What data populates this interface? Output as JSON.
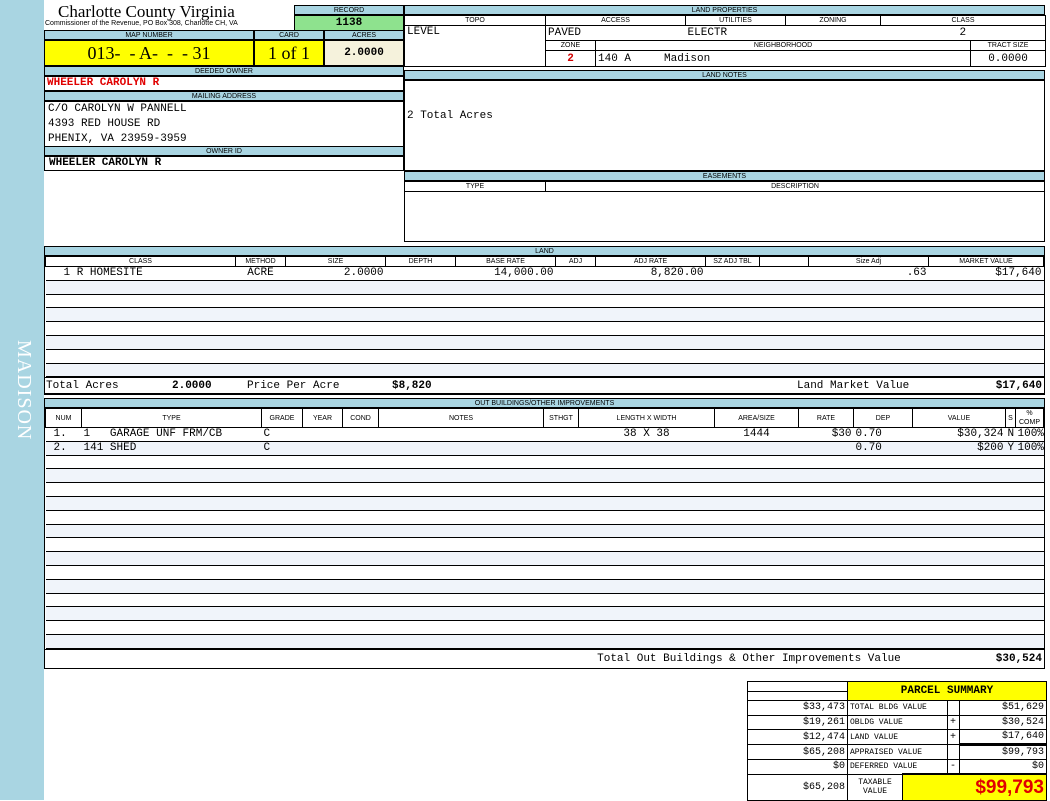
{
  "sidebar": {
    "label": "MADISON",
    "color": "#a9d5e2"
  },
  "header": {
    "county": "Charlotte County Virginia",
    "subtitle": "Commissioner of the Revenue, PO Box 308, Charlotte CH, VA",
    "record_label": "RECORD",
    "record": "1138"
  },
  "parcel": {
    "map_label": "MAP NUMBER",
    "map_number": "013-  - A-  -  - 31",
    "card_label": "CARD",
    "card": "1 of 1",
    "acres_label": "ACRES",
    "acres": "2.0000"
  },
  "owner": {
    "deeded_label": "DEEDED OWNER",
    "deeded": "WHEELER CAROLYN R",
    "mailing_label": "MAILING ADDRESS",
    "address": [
      "C/O CAROLYN W PANNELL",
      "4393 RED HOUSE RD",
      "PHENIX, VA 23959-3959"
    ],
    "id_label": "OWNER ID",
    "id": "WHEELER CAROLYN R"
  },
  "land_props": {
    "title": "LAND PROPERTIES",
    "headers": [
      "TOPO",
      "ACCESS",
      "UTILITIES",
      "ZONING",
      "CLASS"
    ],
    "topo": "LEVEL",
    "access": "PAVED",
    "utilities": "ELECTR",
    "zoning": "",
    "class": "2",
    "zone_label": "ZONE",
    "neighborhood_label": "NEIGHBORHOOD",
    "tract_label": "TRACT SIZE",
    "zone": "2",
    "nbhd_code": "140 A",
    "nbhd_name": "Madison",
    "tract": "0.0000"
  },
  "land_notes": {
    "title": "LAND NOTES",
    "text": "2 Total Acres"
  },
  "easements": {
    "title": "EASEMENTS",
    "type_label": "TYPE",
    "desc_label": "DESCRIPTION"
  },
  "land": {
    "title": "LAND",
    "headers": [
      "CLASS",
      "METHOD",
      "SIZE",
      "DEPTH",
      "BASE RATE",
      "ADJ",
      "ADJ RATE",
      "SZ ADJ TBL",
      "",
      "Size Adj",
      "MARKET VALUE"
    ],
    "rows": [
      [
        "1 R HOMESITE",
        "ACRE",
        "2.0000",
        "",
        "14,000.00",
        "",
        "8,820.00",
        "",
        "",
        ".63",
        "$17,640"
      ]
    ],
    "total_acres_label": "Total Acres",
    "total_acres": "2.0000",
    "ppa_label": "Price Per Acre",
    "ppa": "$8,820",
    "lmv_label": "Land Market Value",
    "lmv": "$17,640"
  },
  "outbuildings": {
    "title": "OUT BUILDINGS/OTHER IMPROVEMENTS",
    "headers": [
      "NUM",
      "TYPE",
      "GRADE",
      "YEAR",
      "COND",
      "NOTES",
      "STHGT",
      "LENGTH X WIDTH",
      "AREA/SIZE",
      "RATE",
      "DEP",
      "VALUE",
      "S",
      "% COMP"
    ],
    "rows": [
      [
        "1.",
        "1   GARAGE UNF FRM/CB",
        "C",
        "",
        "",
        "",
        "",
        "38 X 38",
        "1444",
        "$30",
        "0.70",
        "$30,324",
        "N",
        "100%"
      ],
      [
        "2.",
        "141 SHED",
        "C",
        "",
        "",
        "",
        "",
        "",
        "",
        "",
        "0.70",
        "$200",
        "Y",
        "100%"
      ]
    ],
    "total_label": "Total Out Buildings & Other Improvements Value",
    "total": "$30,524"
  },
  "summary": {
    "title": "PARCEL SUMMARY",
    "rows": [
      {
        "left": "$33,473",
        "label": "TOTAL BLDG VALUE",
        "op": "",
        "value": "$51,629"
      },
      {
        "left": "$19,261",
        "label": "OBLDG VALUE",
        "op": "+",
        "value": "$30,524"
      },
      {
        "left": "$12,474",
        "label": "LAND VALUE",
        "op": "+",
        "value": "$17,640"
      },
      {
        "left": "$65,208",
        "label": "APPRAISED VALUE",
        "op": "",
        "value": "$99,793"
      },
      {
        "left": "$0",
        "label": "DEFERRED VALUE",
        "op": "-",
        "value": "$0"
      }
    ],
    "taxable_left": "$65,208",
    "taxable_label": "TAXABLE VALUE",
    "taxable": "$99,793"
  }
}
